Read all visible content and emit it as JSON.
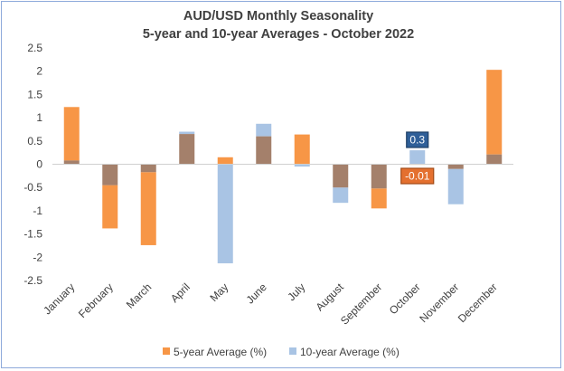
{
  "chart_data": {
    "type": "bar",
    "title_line1": "AUD/USD Monthly  Seasonality",
    "title_line2": "5-year and 10-year Averages - October  2022",
    "categories": [
      "January",
      "February",
      "March",
      "April",
      "May",
      "June",
      "July",
      "August",
      "September",
      "October",
      "November",
      "December"
    ],
    "series": [
      {
        "name": "5-year Average (%)",
        "color": "#f79646",
        "values": [
          1.23,
          -1.38,
          -1.74,
          0.65,
          0.15,
          0.6,
          0.64,
          -0.5,
          -0.95,
          -0.01,
          -0.1,
          2.03
        ]
      },
      {
        "name": "10-year Average (%)",
        "color": "#a9c4e4",
        "values": [
          0.08,
          -0.45,
          -0.17,
          0.7,
          -2.13,
          0.87,
          -0.05,
          -0.83,
          -0.52,
          0.3,
          -0.86,
          0.21
        ]
      }
    ],
    "overlap_color": "#a4806b",
    "ylim": [
      -2.5,
      2.5
    ],
    "yticks": [
      "2.5",
      "2",
      "1.5",
      "1",
      "0.5",
      "0",
      "-0.5",
      "-1",
      "-1.5",
      "-2",
      "-2.5"
    ],
    "ytick_values": [
      2.5,
      2,
      1.5,
      1,
      0.5,
      0,
      -0.5,
      -1,
      -1.5,
      -2,
      -2.5
    ],
    "grid": false,
    "legend_position": "bottom",
    "annotations": [
      {
        "category": "October",
        "series": "10-year Average (%)",
        "label": "0.3",
        "bg": "#2f5f98",
        "border": "#1f3f66"
      },
      {
        "category": "October",
        "series": "5-year Average (%)",
        "label": "-0.01",
        "bg": "#e4702f",
        "border": "#a34a16"
      }
    ]
  }
}
